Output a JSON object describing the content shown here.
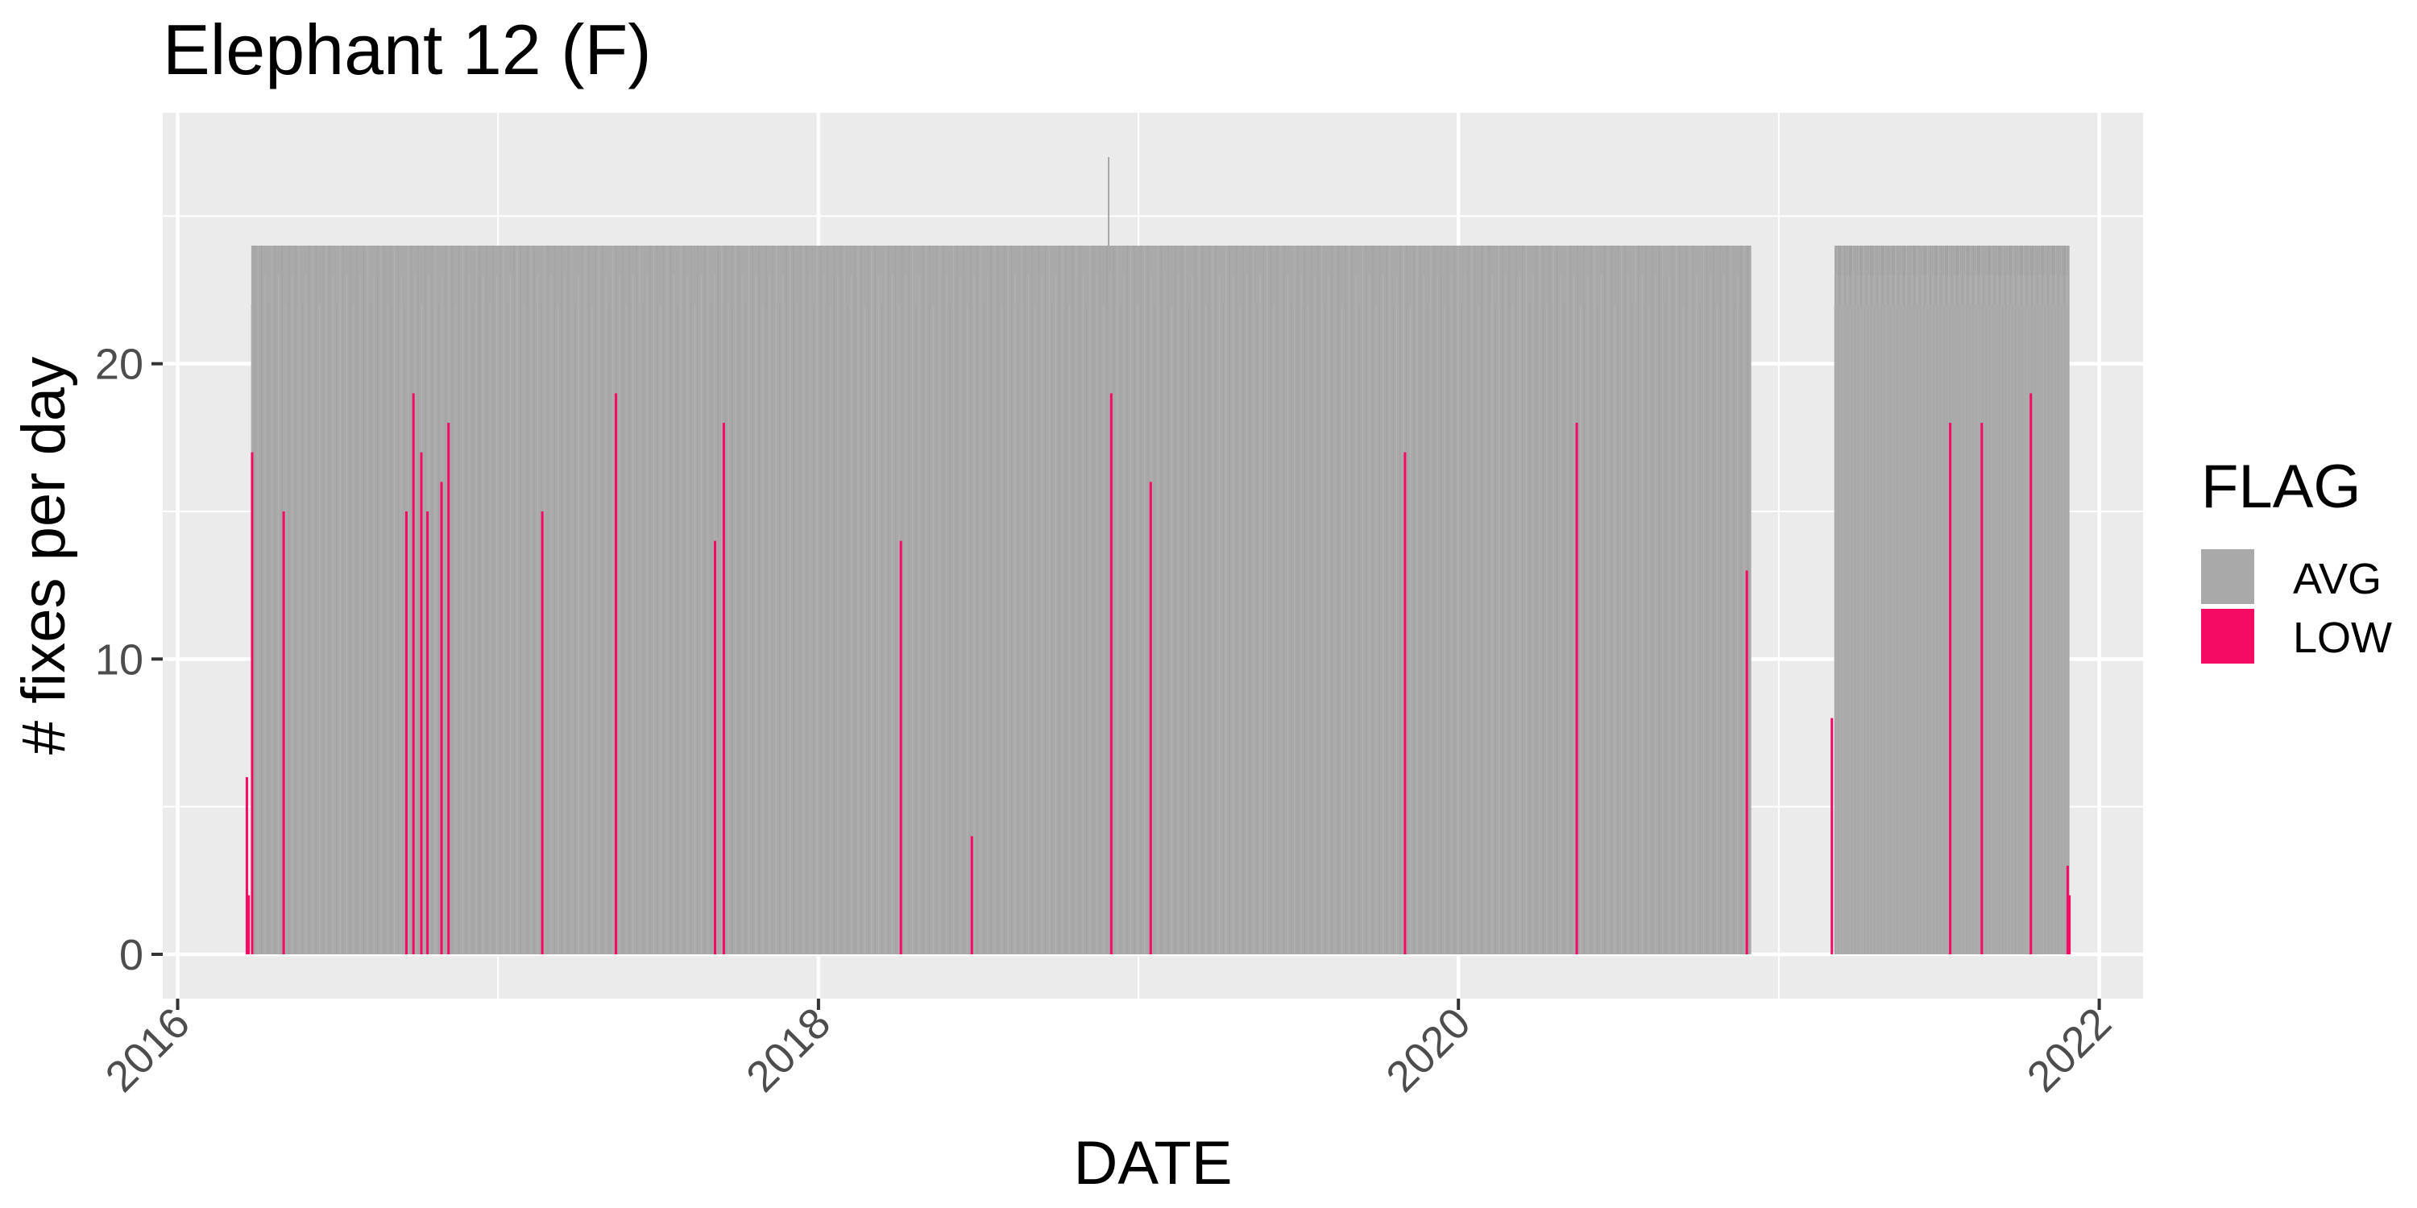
{
  "chart_data": {
    "type": "bar",
    "title": "Elephant 12 (F)",
    "xlabel": "DATE",
    "ylabel": "# fixes per day",
    "x_axis": {
      "type": "date",
      "range": [
        "2015-12-15",
        "2022-02-20"
      ],
      "ticks": [
        "2016-01-01",
        "2018-01-01",
        "2020-01-01",
        "2022-01-01"
      ],
      "tick_labels": [
        "2016",
        "2018",
        "2020",
        "2022"
      ]
    },
    "y_axis": {
      "range": [
        -1.5,
        28.5
      ],
      "ticks": [
        0,
        10,
        20
      ],
      "tick_labels": [
        "0",
        "10",
        "20"
      ]
    },
    "legend": {
      "title": "FLAG",
      "placement": "right",
      "entries": [
        {
          "label": "AVG",
          "color": "#A9A9A9"
        },
        {
          "label": "LOW",
          "color": "#F50A64"
        }
      ]
    },
    "series": [
      {
        "name": "AVG",
        "color": "#A9A9A9",
        "description": "daily fix counts, mostly 22–24 per day",
        "periods": [
          {
            "start": "2016-03-25",
            "end": "2020-11-30",
            "typical_value": 24
          },
          {
            "start": "2021-03-05",
            "end": "2021-11-28",
            "typical_value": 24
          }
        ],
        "points": [
          {
            "x": "2018-11-28",
            "y": 27
          }
        ]
      },
      {
        "name": "LOW",
        "color": "#F50A64",
        "points": [
          {
            "x": "2016-03-20",
            "y": 6
          },
          {
            "x": "2016-03-22",
            "y": 2
          },
          {
            "x": "2016-03-26",
            "y": 17
          },
          {
            "x": "2016-05-01",
            "y": 15
          },
          {
            "x": "2016-09-18",
            "y": 15
          },
          {
            "x": "2016-09-26",
            "y": 19
          },
          {
            "x": "2016-10-05",
            "y": 17
          },
          {
            "x": "2016-10-12",
            "y": 15
          },
          {
            "x": "2016-10-28",
            "y": 16
          },
          {
            "x": "2016-11-05",
            "y": 18
          },
          {
            "x": "2017-02-20",
            "y": 15
          },
          {
            "x": "2017-05-15",
            "y": 19
          },
          {
            "x": "2017-09-05",
            "y": 14
          },
          {
            "x": "2017-09-15",
            "y": 18
          },
          {
            "x": "2018-04-05",
            "y": 14
          },
          {
            "x": "2018-06-25",
            "y": 4
          },
          {
            "x": "2018-12-01",
            "y": 19
          },
          {
            "x": "2019-01-15",
            "y": 16
          },
          {
            "x": "2019-11-01",
            "y": 17
          },
          {
            "x": "2020-05-15",
            "y": 18
          },
          {
            "x": "2020-11-25",
            "y": 13
          },
          {
            "x": "2021-03-02",
            "y": 8
          },
          {
            "x": "2021-07-15",
            "y": 18
          },
          {
            "x": "2021-08-20",
            "y": 18
          },
          {
            "x": "2021-10-15",
            "y": 19
          },
          {
            "x": "2021-11-26",
            "y": 3
          },
          {
            "x": "2021-11-28",
            "y": 2
          }
        ]
      }
    ]
  }
}
